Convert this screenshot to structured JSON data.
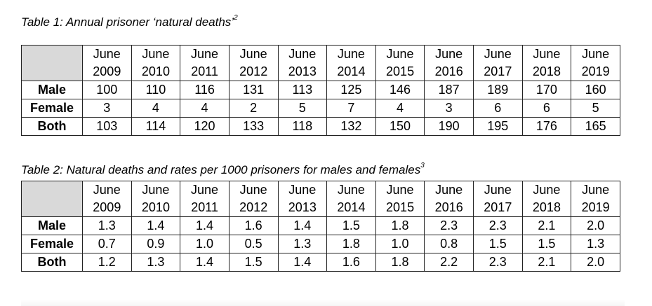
{
  "table1": {
    "caption": "Table 1: Annual prisoner ‘natural deaths’",
    "footnote": "2",
    "columns": [
      [
        "June",
        "2009"
      ],
      [
        "June",
        "2010"
      ],
      [
        "June",
        "2011"
      ],
      [
        "June",
        "2012"
      ],
      [
        "June",
        "2013"
      ],
      [
        "June",
        "2014"
      ],
      [
        "June",
        "2015"
      ],
      [
        "June",
        "2016"
      ],
      [
        "June",
        "2017"
      ],
      [
        "June",
        "2018"
      ],
      [
        "June",
        "2019"
      ]
    ],
    "rows": [
      {
        "label": "Male",
        "values": [
          "100",
          "110",
          "116",
          "131",
          "113",
          "125",
          "146",
          "187",
          "189",
          "170",
          "160"
        ]
      },
      {
        "label": "Female",
        "values": [
          "3",
          "4",
          "4",
          "2",
          "5",
          "7",
          "4",
          "3",
          "6",
          "6",
          "5"
        ]
      },
      {
        "label": "Both",
        "values": [
          "103",
          "114",
          "120",
          "133",
          "118",
          "132",
          "150",
          "190",
          "195",
          "176",
          "165"
        ]
      }
    ]
  },
  "table2": {
    "caption": "Table 2: Natural deaths and rates per 1000 prisoners for males and females",
    "footnote": "3",
    "columns": [
      [
        "June",
        "2009"
      ],
      [
        "June",
        "2010"
      ],
      [
        "June",
        "2011"
      ],
      [
        "June",
        "2012"
      ],
      [
        "June",
        "2013"
      ],
      [
        "June",
        "2014"
      ],
      [
        "June",
        "2015"
      ],
      [
        "June",
        "2016"
      ],
      [
        "June",
        "2017"
      ],
      [
        "June",
        "2018"
      ],
      [
        "June",
        "2019"
      ]
    ],
    "rows": [
      {
        "label": "Male",
        "values": [
          "1.3",
          "1.4",
          "1.4",
          "1.6",
          "1.4",
          "1.5",
          "1.8",
          "2.3",
          "2.3",
          "2.1",
          "2.0"
        ]
      },
      {
        "label": "Female",
        "values": [
          "0.7",
          "0.9",
          "1.0",
          "0.5",
          "1.3",
          "1.8",
          "1.0",
          "0.8",
          "1.5",
          "1.5",
          "1.3"
        ]
      },
      {
        "label": "Both",
        "values": [
          "1.2",
          "1.3",
          "1.4",
          "1.5",
          "1.4",
          "1.6",
          "1.8",
          "2.2",
          "2.3",
          "2.1",
          "2.0"
        ]
      }
    ]
  }
}
